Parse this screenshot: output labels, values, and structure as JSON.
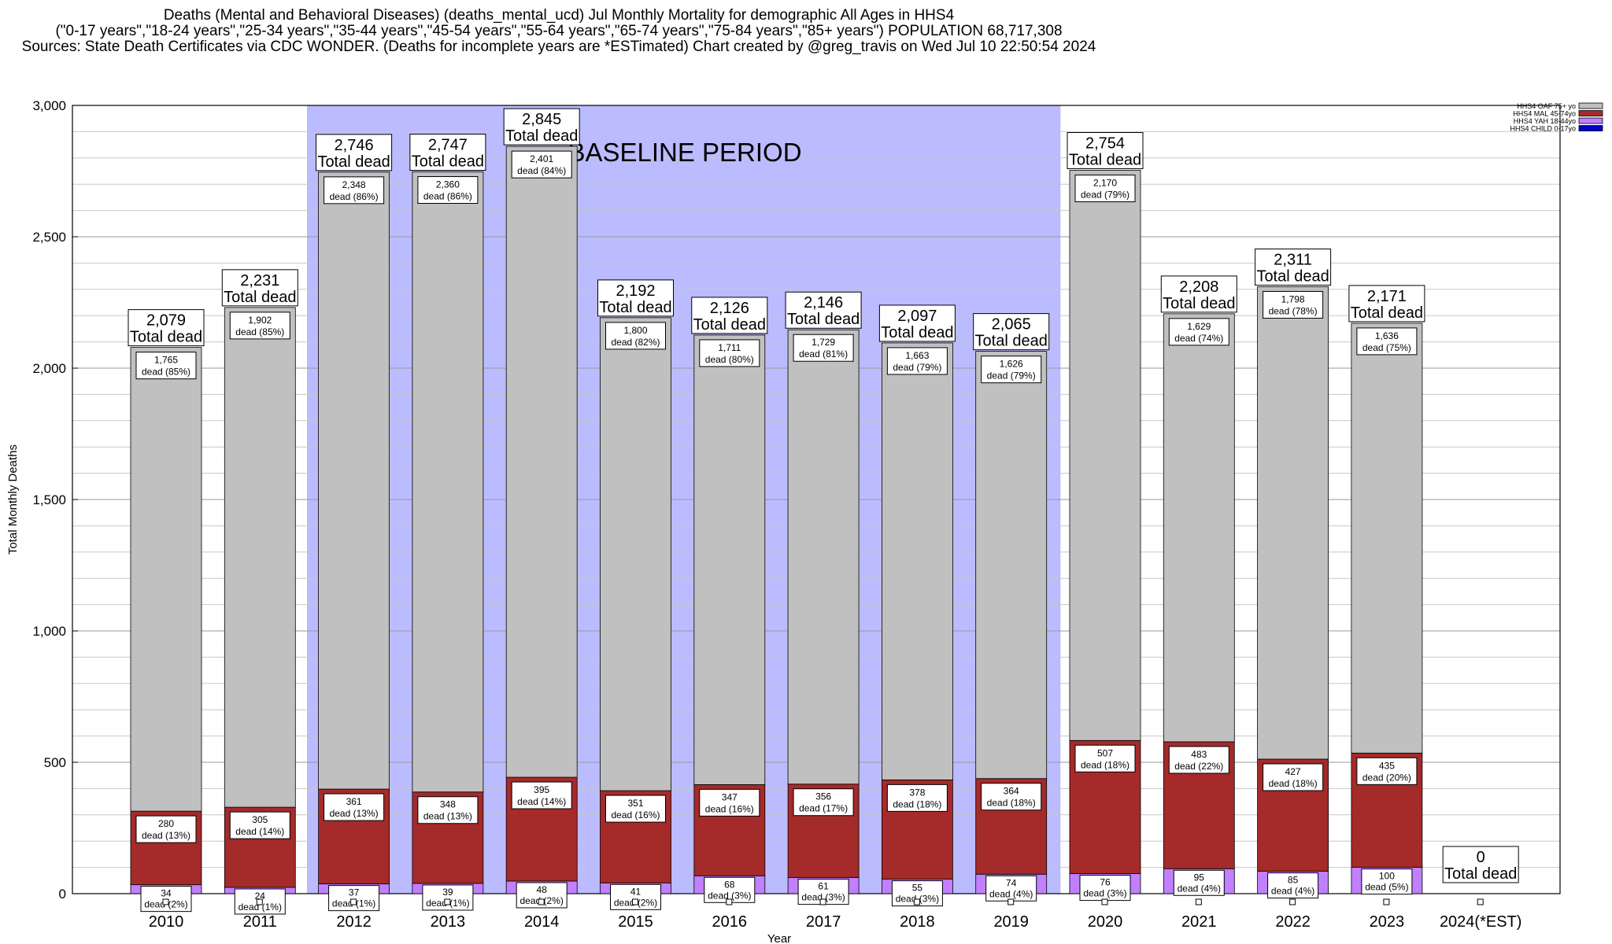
{
  "title_lines": [
    "Deaths (Mental and Behavioral Diseases) (deaths_mental_ucd) Jul Monthly Mortality for demographic All Ages in HHS4",
    "(\"0-17 years\",\"18-24 years\",\"25-34 years\",\"35-44 years\",\"45-54 years\",\"55-64 years\",\"65-74 years\",\"75-84 years\",\"85+ years\") POPULATION 68,717,308",
    "Sources: State Death Certificates via CDC WONDER. (Deaths for incomplete years are *ESTimated)                Chart created by @greg_travis on Wed Jul 10 22:50:54 2024"
  ],
  "chart_data": {
    "type": "bar",
    "stacked": true,
    "xlabel": "Year",
    "ylabel": "Total Monthly Deaths",
    "ylim": [
      0,
      3000
    ],
    "yticks": [
      "0",
      "500",
      "1,000",
      "1,500",
      "2,000",
      "2,500",
      "3,000"
    ],
    "grid": true,
    "legend_position": "top-right",
    "baseline_label": "BASELINE PERIOD",
    "baseline_years": [
      "2012",
      "2019"
    ],
    "total_word": "Total dead",
    "seg_word": "dead",
    "colors": {
      "oaf": "#c0c0c0",
      "mal": "#a52a2a",
      "yah": "#c080ff",
      "child": "#0000cd",
      "baseline": "#bbbbff"
    },
    "series": [
      {
        "name": "HHS4 OAF 75+ yo",
        "key": "oaf"
      },
      {
        "name": "HHS4 MAL 45-74yo",
        "key": "mal"
      },
      {
        "name": "HHS4 YAH 18-44yo",
        "key": "yah"
      },
      {
        "name": "HHS4 CHILD 0-17yo",
        "key": "child"
      }
    ],
    "categories": [
      "2010",
      "2011",
      "2012",
      "2013",
      "2014",
      "2015",
      "2016",
      "2017",
      "2018",
      "2019",
      "2020",
      "2021",
      "2022",
      "2023",
      "2024(*EST)"
    ],
    "totals": [
      2079,
      2231,
      2746,
      2747,
      2845,
      2192,
      2126,
      2146,
      2097,
      2065,
      2754,
      2208,
      2311,
      2171,
      0
    ],
    "total_labels": [
      "2,079",
      "2,231",
      "2,746",
      "2,747",
      "2,845",
      "2,192",
      "2,126",
      "2,146",
      "2,097",
      "2,065",
      "2,754",
      "2,208",
      "2,311",
      "2,171",
      "0"
    ],
    "oaf": [
      1765,
      1902,
      2348,
      2360,
      2401,
      1800,
      1711,
      1729,
      1663,
      1626,
      2170,
      1629,
      1798,
      1636,
      0
    ],
    "oaf_labels": [
      "1,765",
      "1,902",
      "2,348",
      "2,360",
      "2,401",
      "1,800",
      "1,711",
      "1,729",
      "1,663",
      "1,626",
      "2,170",
      "1,629",
      "1,798",
      "1,636",
      ""
    ],
    "oaf_pct": [
      "85%",
      "85%",
      "86%",
      "86%",
      "84%",
      "82%",
      "80%",
      "81%",
      "79%",
      "79%",
      "79%",
      "74%",
      "78%",
      "75%",
      ""
    ],
    "mal": [
      280,
      305,
      361,
      348,
      395,
      351,
      347,
      356,
      378,
      364,
      507,
      483,
      427,
      435,
      0
    ],
    "mal_pct": [
      "13%",
      "14%",
      "13%",
      "13%",
      "14%",
      "16%",
      "16%",
      "17%",
      "18%",
      "18%",
      "18%",
      "22%",
      "18%",
      "20%",
      ""
    ],
    "yah": [
      34,
      24,
      37,
      39,
      48,
      41,
      68,
      61,
      55,
      74,
      76,
      95,
      85,
      100,
      0
    ],
    "yah_pct": [
      "2%",
      "1%",
      "1%",
      "1%",
      "2%",
      "2%",
      "3%",
      "3%",
      "3%",
      "4%",
      "3%",
      "4%",
      "4%",
      "5%",
      ""
    ],
    "child": [
      0,
      0,
      0,
      0,
      0,
      0,
      0,
      0,
      0,
      0,
      0,
      0,
      0,
      0,
      0
    ]
  }
}
